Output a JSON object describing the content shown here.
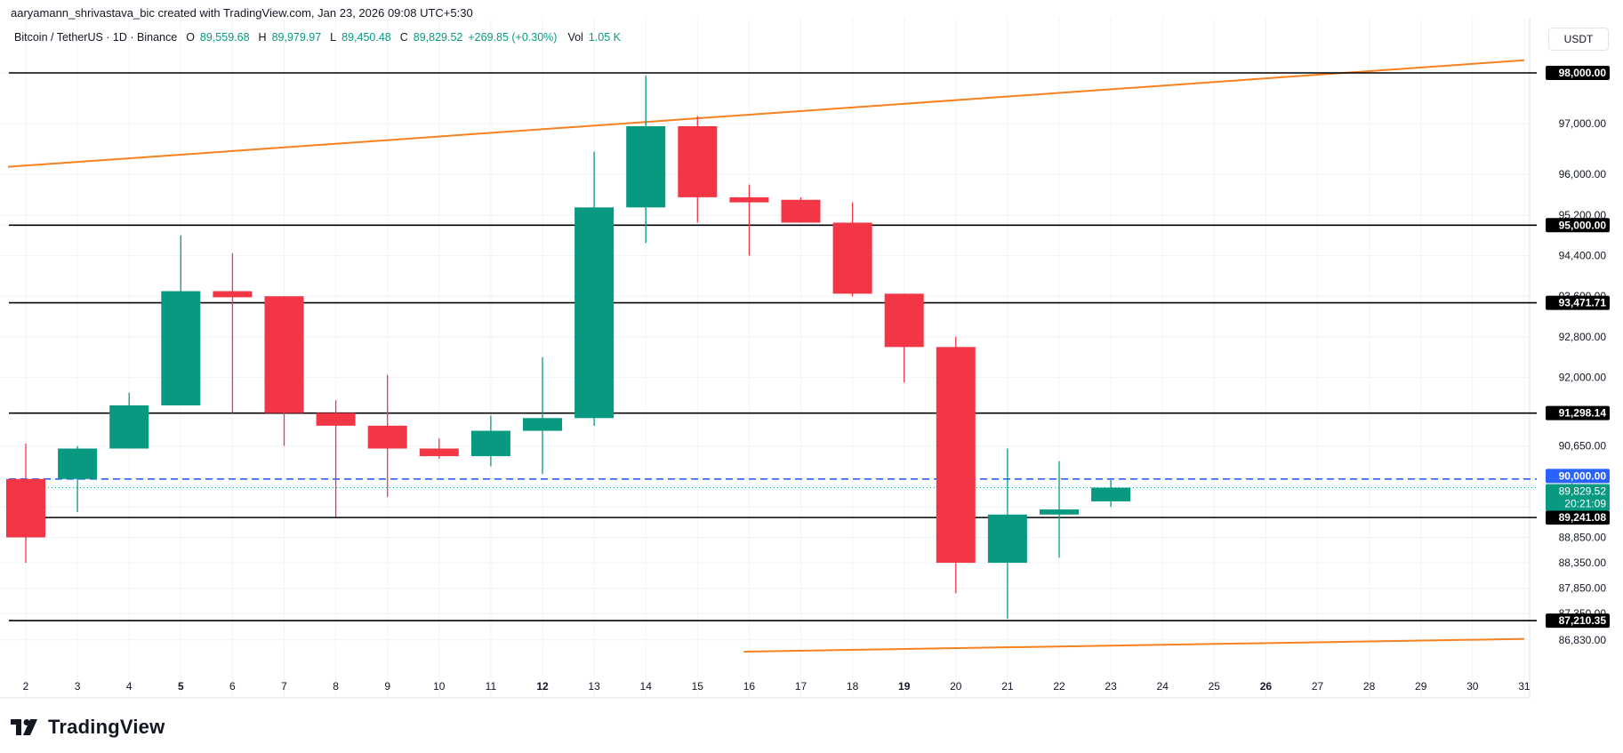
{
  "credit": "aaryamann_shrivastava_bic created with TradingView.com, Jan 23, 2026 09:08 UTC+5:30",
  "legend": {
    "symbol": "Bitcoin / TetherUS · 1D · Binance",
    "o_label": "O",
    "o_value": "89,559.68",
    "h_label": "H",
    "h_value": "89,979.97",
    "l_label": "L",
    "l_value": "89,450.48",
    "c_label": "C",
    "c_value": "89,829.52",
    "change": "+269.85 (+0.30%)",
    "vol_label": "Vol",
    "vol_value": "1.05 K"
  },
  "currency_button": "USDT",
  "brand": "TradingView",
  "colors": {
    "up": "#089981",
    "down": "#f23645",
    "trendline": "#f7801f",
    "dashed": "#2962ff",
    "level_line": "#000000"
  },
  "chart_data": {
    "type": "candlestick",
    "x_ticks": [
      "2",
      "3",
      "4",
      "5",
      "6",
      "7",
      "8",
      "9",
      "10",
      "11",
      "12",
      "13",
      "14",
      "15",
      "16",
      "17",
      "18",
      "19",
      "20",
      "21",
      "22",
      "23",
      "24",
      "25",
      "26",
      "27",
      "28",
      "29",
      "30",
      "31"
    ],
    "bold_ticks": [
      "5",
      "12",
      "19",
      "26"
    ],
    "candles": [
      {
        "day": "2",
        "open": 90000,
        "high": 90700,
        "low": 88350,
        "close": 88850
      },
      {
        "day": "3",
        "open": 90000,
        "high": 90650,
        "low": 89350,
        "close": 90600
      },
      {
        "day": "4",
        "open": 90600,
        "high": 91700,
        "low": 90600,
        "close": 91450
      },
      {
        "day": "5",
        "open": 91450,
        "high": 94800,
        "low": 91450,
        "close": 93700
      },
      {
        "day": "6",
        "open": 93700,
        "high": 94450,
        "low": 91300,
        "close": 93580
      },
      {
        "day": "7",
        "open": 93600,
        "high": 93600,
        "low": 90650,
        "close": 91300
      },
      {
        "day": "8",
        "open": 91300,
        "high": 91550,
        "low": 89250,
        "close": 91050
      },
      {
        "day": "9",
        "open": 91050,
        "high": 92050,
        "low": 89650,
        "close": 90600
      },
      {
        "day": "10",
        "open": 90600,
        "high": 90800,
        "low": 90400,
        "close": 90450
      },
      {
        "day": "11",
        "open": 90450,
        "high": 91250,
        "low": 90250,
        "close": 90950
      },
      {
        "day": "12",
        "open": 90950,
        "high": 92400,
        "low": 90100,
        "close": 91200
      },
      {
        "day": "13",
        "open": 91200,
        "high": 96450,
        "low": 91050,
        "close": 95350
      },
      {
        "day": "14",
        "open": 95350,
        "high": 97950,
        "low": 94650,
        "close": 96950
      },
      {
        "day": "15",
        "open": 96950,
        "high": 97150,
        "low": 95050,
        "close": 95550
      },
      {
        "day": "16",
        "open": 95550,
        "high": 95800,
        "low": 94400,
        "close": 95450
      },
      {
        "day": "17",
        "open": 95500,
        "high": 95550,
        "low": 95050,
        "close": 95050
      },
      {
        "day": "18",
        "open": 95050,
        "high": 95450,
        "low": 93600,
        "close": 93650
      },
      {
        "day": "19",
        "open": 93650,
        "high": 93650,
        "low": 91900,
        "close": 92600
      },
      {
        "day": "20",
        "open": 92600,
        "high": 92800,
        "low": 87750,
        "close": 88350
      },
      {
        "day": "21",
        "open": 88350,
        "high": 90600,
        "low": 87250,
        "close": 89300
      },
      {
        "day": "22",
        "open": 89300,
        "high": 90350,
        "low": 88450,
        "close": 89400
      },
      {
        "day": "23",
        "open": 89559.68,
        "high": 89979.97,
        "low": 89450.48,
        "close": 89829.52
      }
    ],
    "y_ticks": [
      "98,000.00",
      "97,000.00",
      "96,000.00",
      "95,200.00",
      "95,000.00",
      "94,400.00",
      "93,600.00",
      "92,800.00",
      "92,000.00",
      "90,650.00",
      "90,000.00",
      "89,450.00",
      "88,850.00",
      "88,350.00",
      "87,850.00",
      "87,350.00",
      "86,830.00"
    ],
    "horizontal_levels": [
      "98,000.00",
      "95,000.00",
      "93,471.71",
      "91,298.14",
      "89,241.08",
      "87,210.35"
    ],
    "dashed_level": "90,000.00",
    "current_price": "89,829.52",
    "countdown": "20:21:09",
    "trendlines": [
      {
        "from_day": "2",
        "from_price": 96150,
        "to_day": "31",
        "to_price": 98250
      },
      {
        "from_day": "16",
        "from_price": 86600,
        "to_day": "31",
        "to_price": 86850
      }
    ]
  }
}
